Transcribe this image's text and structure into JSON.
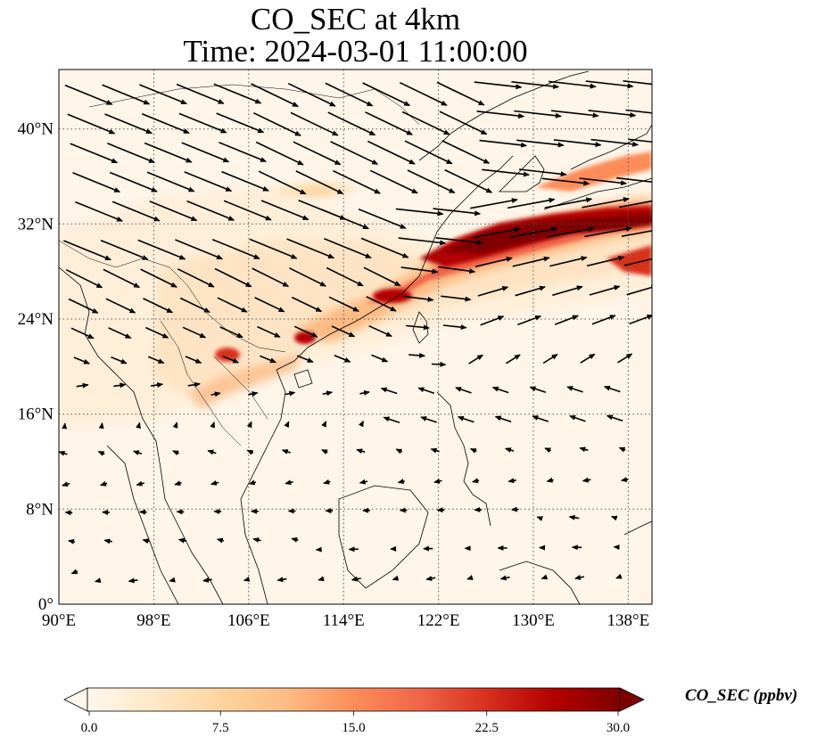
{
  "title": {
    "line1": "CO_SEC at 4km",
    "line2": "Time: 2024-03-01 11:00:00"
  },
  "map": {
    "projection": "PlateCarree",
    "lon_range": [
      90,
      140
    ],
    "lat_range": [
      0,
      45
    ],
    "gridlines": "dotted",
    "lon_ticks": [
      {
        "value": 90,
        "label": "90°E"
      },
      {
        "value": 98,
        "label": "98°E"
      },
      {
        "value": 106,
        "label": "106°E"
      },
      {
        "value": 114,
        "label": "114°E"
      },
      {
        "value": 122,
        "label": "122°E"
      },
      {
        "value": 130,
        "label": "130°E"
      },
      {
        "value": 138,
        "label": "138°E"
      }
    ],
    "lat_ticks": [
      {
        "value": 0,
        "label": "0°"
      },
      {
        "value": 8,
        "label": "8°N"
      },
      {
        "value": 16,
        "label": "16°N"
      },
      {
        "value": 24,
        "label": "24°N"
      },
      {
        "value": 32,
        "label": "32°N"
      },
      {
        "value": 40,
        "label": "40°N"
      }
    ],
    "wind_vectors": "black arrows, westerly to north-west flow north of ~18°N, weak easterly flow to the south"
  },
  "colorbar": {
    "label": "CO_SEC (ppbv)",
    "colormap": "OrRd",
    "min": 0.0,
    "max": 30.0,
    "extend": "both",
    "ticks": [
      "0.0",
      "7.5",
      "15.0",
      "22.5",
      "30.0"
    ],
    "colors": [
      "#fff7ec",
      "#fee8c8",
      "#fdd49e",
      "#fdbb84",
      "#fc8d59",
      "#ef6548",
      "#d7301f",
      "#b30000",
      "#7f0000"
    ]
  }
}
